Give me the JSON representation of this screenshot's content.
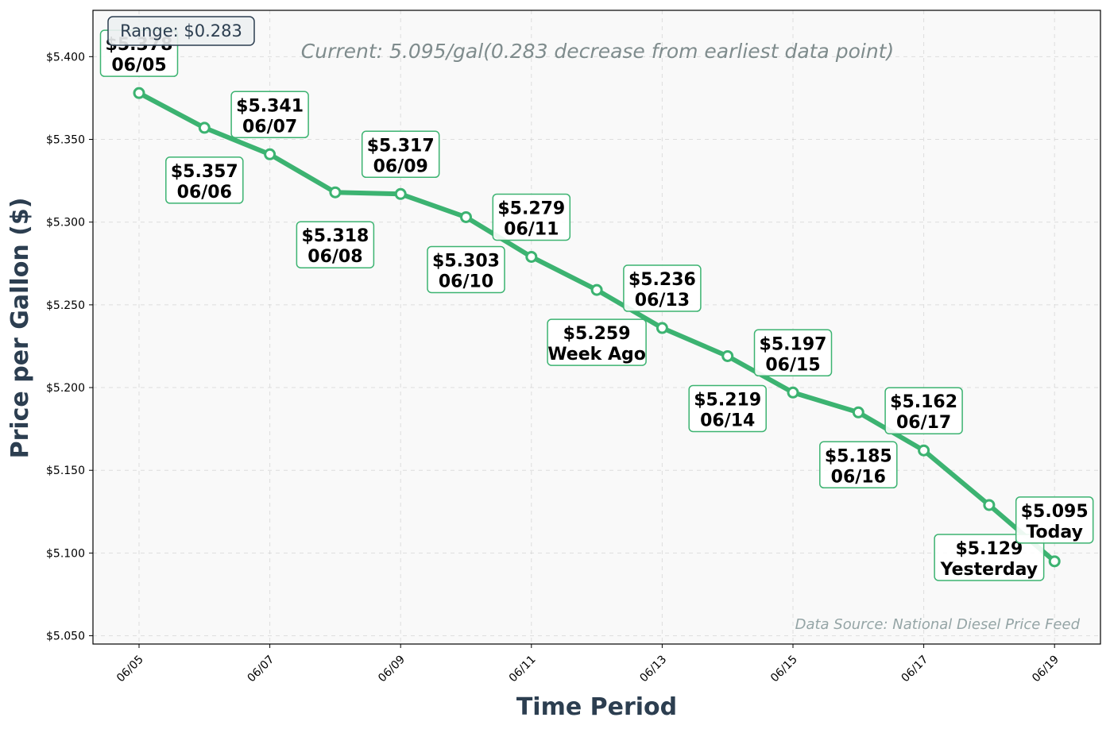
{
  "colors": {
    "line": "#3cb371",
    "plot_bg": "#f9f9f9",
    "axis_title": "#2c3e50",
    "current_text": "#7f8c8d",
    "source_text": "#95a5a6"
  },
  "chart_data": {
    "type": "line",
    "xlabel": "Time Period",
    "ylabel": "Price per Gallon ($)",
    "ylim": [
      5.045,
      5.428
    ],
    "grid": true,
    "x_ticks": [
      "06/05",
      "06/07",
      "06/09",
      "06/11",
      "06/13",
      "06/15",
      "06/17",
      "06/19"
    ],
    "y_ticks": [
      "$5.050",
      "$5.100",
      "$5.150",
      "$5.200",
      "$5.250",
      "$5.300",
      "$5.350",
      "$5.400"
    ],
    "y_tick_values": [
      5.05,
      5.1,
      5.15,
      5.2,
      5.25,
      5.3,
      5.35,
      5.4
    ],
    "series": [
      {
        "dates": [
          "06/05",
          "06/06",
          "06/07",
          "06/08",
          "06/09",
          "06/10",
          "06/11",
          "06/12",
          "06/13",
          "06/14",
          "06/15",
          "06/16",
          "06/17",
          "06/18",
          "06/19"
        ],
        "values": [
          5.378,
          5.357,
          5.341,
          5.318,
          5.317,
          5.303,
          5.279,
          5.259,
          5.236,
          5.219,
          5.197,
          5.185,
          5.162,
          5.129,
          5.095
        ]
      }
    ],
    "annotations": [
      {
        "price": "$5.378",
        "label": "06/05"
      },
      {
        "price": "$5.357",
        "label": "06/06"
      },
      {
        "price": "$5.341",
        "label": "06/07"
      },
      {
        "price": "$5.318",
        "label": "06/08"
      },
      {
        "price": "$5.317",
        "label": "06/09"
      },
      {
        "price": "$5.303",
        "label": "06/10"
      },
      {
        "price": "$5.279",
        "label": "06/11"
      },
      {
        "price": "$5.259",
        "label": "Week Ago"
      },
      {
        "price": "$5.236",
        "label": "06/13"
      },
      {
        "price": "$5.219",
        "label": "06/14"
      },
      {
        "price": "$5.197",
        "label": "06/15"
      },
      {
        "price": "$5.185",
        "label": "06/16"
      },
      {
        "price": "$5.162",
        "label": "06/17"
      },
      {
        "price": "$5.129",
        "label": "Yesterday"
      },
      {
        "price": "$5.095",
        "label": "Today"
      }
    ],
    "range_label": "Range: $0.283",
    "current_label": "Current: 5.095/gal(0.283 decrease from earliest data point)",
    "source_label": "Data Source: National Diesel Price Feed"
  }
}
